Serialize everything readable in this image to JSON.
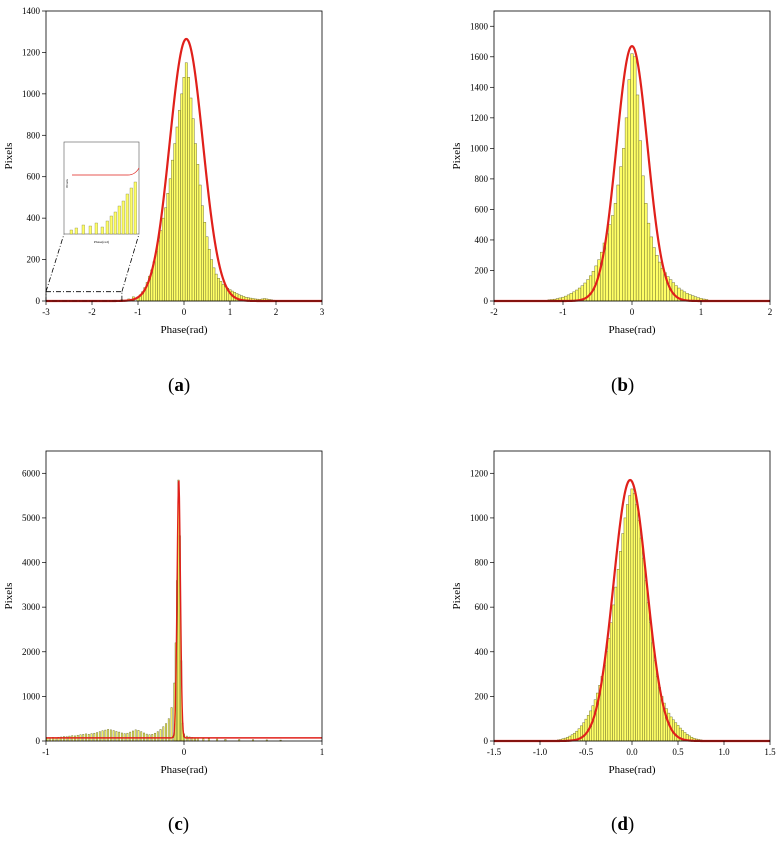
{
  "captions": [
    "a",
    "b",
    "c",
    "d"
  ],
  "chart_data": [
    {
      "id": "a",
      "type": "bar",
      "xlabel": "Phase(rad)",
      "ylabel": "Pixels",
      "xlim": [
        -3,
        3
      ],
      "ylim": [
        0,
        1400
      ],
      "xticks": [
        -3,
        -2,
        -1,
        0,
        1,
        2,
        3
      ],
      "yticks": [
        0,
        200,
        400,
        600,
        800,
        1000,
        1200,
        1400
      ],
      "bin_width": 0.05,
      "bins": [
        [
          -2.5,
          3
        ],
        [
          -1.5,
          4
        ],
        [
          -1.35,
          6
        ],
        [
          -1.2,
          10
        ],
        [
          -1.1,
          20
        ],
        [
          -1.0,
          20
        ],
        [
          -0.95,
          30
        ],
        [
          -0.9,
          45
        ],
        [
          -0.85,
          65
        ],
        [
          -0.8,
          90
        ],
        [
          -0.75,
          120
        ],
        [
          -0.7,
          150
        ],
        [
          -0.65,
          190
        ],
        [
          -0.6,
          240
        ],
        [
          -0.55,
          290
        ],
        [
          -0.5,
          340
        ],
        [
          -0.45,
          400
        ],
        [
          -0.4,
          450
        ],
        [
          -0.35,
          520
        ],
        [
          -0.3,
          590
        ],
        [
          -0.25,
          680
        ],
        [
          -0.2,
          760
        ],
        [
          -0.15,
          840
        ],
        [
          -0.1,
          920
        ],
        [
          -0.05,
          1000
        ],
        [
          0.0,
          1080
        ],
        [
          0.05,
          1150
        ],
        [
          0.1,
          1080
        ],
        [
          0.15,
          980
        ],
        [
          0.2,
          880
        ],
        [
          0.25,
          760
        ],
        [
          0.3,
          660
        ],
        [
          0.35,
          560
        ],
        [
          0.4,
          460
        ],
        [
          0.45,
          380
        ],
        [
          0.5,
          310
        ],
        [
          0.55,
          250
        ],
        [
          0.6,
          200
        ],
        [
          0.65,
          160
        ],
        [
          0.7,
          130
        ],
        [
          0.75,
          110
        ],
        [
          0.8,
          95
        ],
        [
          0.85,
          80
        ],
        [
          0.9,
          70
        ],
        [
          0.95,
          62
        ],
        [
          1.0,
          55
        ],
        [
          1.05,
          48
        ],
        [
          1.1,
          42
        ],
        [
          1.15,
          36
        ],
        [
          1.2,
          30
        ],
        [
          1.25,
          26
        ],
        [
          1.3,
          22
        ],
        [
          1.35,
          18
        ],
        [
          1.4,
          16
        ],
        [
          1.45,
          14
        ],
        [
          1.5,
          12
        ],
        [
          1.55,
          10
        ],
        [
          1.6,
          9
        ],
        [
          1.65,
          8
        ],
        [
          1.7,
          10
        ],
        [
          1.75,
          12
        ],
        [
          1.8,
          10
        ],
        [
          1.85,
          8
        ],
        [
          1.9,
          6
        ],
        [
          1.95,
          4
        ],
        [
          2.0,
          3
        ]
      ],
      "fit": {
        "amplitude": 1265,
        "mean": 0.05,
        "sigma": 0.36
      },
      "inset": {
        "xlabel": "Phase(rad)",
        "ylabel": "Pixels",
        "zoom_region": {
          "x": [
            -3,
            -1.35
          ],
          "y": [
            0,
            45
          ]
        }
      }
    },
    {
      "id": "b",
      "type": "bar",
      "xlabel": "Phase(rad)",
      "ylabel": "Pixels",
      "xlim": [
        -2,
        2
      ],
      "ylim": [
        0,
        1900
      ],
      "xticks": [
        -2,
        -1,
        0,
        1,
        2
      ],
      "yticks": [
        0,
        200,
        400,
        600,
        800,
        1000,
        1200,
        1400,
        1600,
        1800
      ],
      "bin_width": 0.04,
      "bins": [
        [
          -1.2,
          8
        ],
        [
          -1.16,
          10
        ],
        [
          -1.12,
          12
        ],
        [
          -1.08,
          16
        ],
        [
          -1.04,
          20
        ],
        [
          -1.0,
          25
        ],
        [
          -0.96,
          32
        ],
        [
          -0.92,
          40
        ],
        [
          -0.88,
          50
        ],
        [
          -0.84,
          60
        ],
        [
          -0.8,
          72
        ],
        [
          -0.76,
          85
        ],
        [
          -0.72,
          100
        ],
        [
          -0.68,
          118
        ],
        [
          -0.64,
          140
        ],
        [
          -0.6,
          165
        ],
        [
          -0.56,
          195
        ],
        [
          -0.52,
          230
        ],
        [
          -0.48,
          270
        ],
        [
          -0.44,
          320
        ],
        [
          -0.4,
          380
        ],
        [
          -0.36,
          440
        ],
        [
          -0.32,
          500
        ],
        [
          -0.28,
          560
        ],
        [
          -0.24,
          640
        ],
        [
          -0.2,
          760
        ],
        [
          -0.16,
          880
        ],
        [
          -0.12,
          1000
        ],
        [
          -0.08,
          1200
        ],
        [
          -0.04,
          1450
        ],
        [
          0.0,
          1620
        ],
        [
          0.04,
          1600
        ],
        [
          0.08,
          1350
        ],
        [
          0.12,
          1050
        ],
        [
          0.16,
          820
        ],
        [
          0.2,
          640
        ],
        [
          0.24,
          510
        ],
        [
          0.28,
          420
        ],
        [
          0.32,
          350
        ],
        [
          0.36,
          300
        ],
        [
          0.4,
          255
        ],
        [
          0.44,
          215
        ],
        [
          0.48,
          185
        ],
        [
          0.52,
          160
        ],
        [
          0.56,
          140
        ],
        [
          0.6,
          120
        ],
        [
          0.64,
          100
        ],
        [
          0.68,
          85
        ],
        [
          0.72,
          72
        ],
        [
          0.76,
          60
        ],
        [
          0.8,
          50
        ],
        [
          0.84,
          42
        ],
        [
          0.88,
          35
        ],
        [
          0.92,
          28
        ],
        [
          0.96,
          22
        ],
        [
          1.0,
          17
        ],
        [
          1.04,
          13
        ],
        [
          1.08,
          10
        ]
      ],
      "fit": {
        "amplitude": 1670,
        "mean": 0.0,
        "sigma": 0.225
      }
    },
    {
      "id": "c",
      "type": "bar",
      "xlabel": "Phase(rad)",
      "ylabel": "Pixels",
      "xlim": [
        -1,
        1
      ],
      "ylim": [
        0,
        6500
      ],
      "xticks": [
        -1,
        0,
        1
      ],
      "yticks": [
        0,
        1000,
        2000,
        3000,
        4000,
        5000,
        6000
      ],
      "bin_width": 0.01,
      "bins": [
        [
          -0.99,
          60
        ],
        [
          -0.97,
          70
        ],
        [
          -0.95,
          80
        ],
        [
          -0.93,
          75
        ],
        [
          -0.91,
          85
        ],
        [
          -0.89,
          90
        ],
        [
          -0.87,
          100
        ],
        [
          -0.85,
          95
        ],
        [
          -0.83,
          110
        ],
        [
          -0.81,
          120
        ],
        [
          -0.79,
          115
        ],
        [
          -0.77,
          130
        ],
        [
          -0.75,
          140
        ],
        [
          -0.73,
          150
        ],
        [
          -0.71,
          160
        ],
        [
          -0.69,
          150
        ],
        [
          -0.67,
          165
        ],
        [
          -0.65,
          175
        ],
        [
          -0.63,
          190
        ],
        [
          -0.61,
          210
        ],
        [
          -0.59,
          230
        ],
        [
          -0.57,
          245
        ],
        [
          -0.55,
          260
        ],
        [
          -0.53,
          250
        ],
        [
          -0.51,
          235
        ],
        [
          -0.49,
          215
        ],
        [
          -0.47,
          200
        ],
        [
          -0.45,
          180
        ],
        [
          -0.43,
          165
        ],
        [
          -0.41,
          175
        ],
        [
          -0.39,
          200
        ],
        [
          -0.37,
          225
        ],
        [
          -0.35,
          250
        ],
        [
          -0.33,
          240
        ],
        [
          -0.31,
          210
        ],
        [
          -0.29,
          180
        ],
        [
          -0.27,
          155
        ],
        [
          -0.25,
          140
        ],
        [
          -0.23,
          150
        ],
        [
          -0.21,
          175
        ],
        [
          -0.19,
          210
        ],
        [
          -0.17,
          260
        ],
        [
          -0.15,
          320
        ],
        [
          -0.13,
          390
        ],
        [
          -0.11,
          500
        ],
        [
          -0.09,
          750
        ],
        [
          -0.07,
          1300
        ],
        [
          -0.06,
          2200
        ],
        [
          -0.05,
          3600
        ],
        [
          -0.04,
          5850
        ],
        [
          -0.03,
          4600
        ],
        [
          -0.02,
          1800
        ],
        [
          -0.01,
          400
        ],
        [
          0.0,
          160
        ],
        [
          0.02,
          110
        ],
        [
          0.04,
          90
        ],
        [
          0.06,
          80
        ],
        [
          0.08,
          70
        ],
        [
          0.1,
          65
        ],
        [
          0.14,
          55
        ],
        [
          0.18,
          50
        ],
        [
          0.24,
          45
        ],
        [
          0.3,
          40
        ],
        [
          0.4,
          35
        ],
        [
          0.5,
          30
        ],
        [
          0.6,
          25
        ],
        [
          0.7,
          20
        ]
      ],
      "fit": {
        "amplitude": 5800,
        "mean": -0.038,
        "sigma": 0.012,
        "baseline": 70
      }
    },
    {
      "id": "d",
      "type": "bar",
      "xlabel": "Phase(rad)",
      "ylabel": "Pixels",
      "xlim": [
        -1.5,
        1.5
      ],
      "ylim": [
        0,
        1300
      ],
      "xticks": [
        -1.5,
        -1.0,
        -0.5,
        0.0,
        0.5,
        1.0,
        1.5
      ],
      "xtick_labels": [
        "-1.5",
        "-1.0",
        "-0.5",
        "0.0",
        "0.5",
        "1.0",
        "1.5"
      ],
      "yticks": [
        0,
        200,
        400,
        600,
        800,
        1000,
        1200
      ],
      "bin_width": 0.025,
      "bins": [
        [
          -0.8,
          5
        ],
        [
          -0.775,
          7
        ],
        [
          -0.75,
          10
        ],
        [
          -0.725,
          13
        ],
        [
          -0.7,
          17
        ],
        [
          -0.675,
          22
        ],
        [
          -0.65,
          28
        ],
        [
          -0.625,
          35
        ],
        [
          -0.6,
          44
        ],
        [
          -0.575,
          55
        ],
        [
          -0.55,
          68
        ],
        [
          -0.525,
          82
        ],
        [
          -0.5,
          98
        ],
        [
          -0.475,
          115
        ],
        [
          -0.45,
          135
        ],
        [
          -0.425,
          158
        ],
        [
          -0.4,
          185
        ],
        [
          -0.375,
          215
        ],
        [
          -0.35,
          250
        ],
        [
          -0.325,
          290
        ],
        [
          -0.3,
          340
        ],
        [
          -0.275,
          400
        ],
        [
          -0.25,
          460
        ],
        [
          -0.225,
          530
        ],
        [
          -0.2,
          610
        ],
        [
          -0.175,
          690
        ],
        [
          -0.15,
          770
        ],
        [
          -0.125,
          850
        ],
        [
          -0.1,
          930
        ],
        [
          -0.075,
          1000
        ],
        [
          -0.05,
          1060
        ],
        [
          -0.025,
          1100
        ],
        [
          0.0,
          1130
        ],
        [
          0.025,
          1110
        ],
        [
          0.05,
          1060
        ],
        [
          0.075,
          990
        ],
        [
          0.1,
          910
        ],
        [
          0.125,
          820
        ],
        [
          0.15,
          720
        ],
        [
          0.175,
          620
        ],
        [
          0.2,
          530
        ],
        [
          0.225,
          440
        ],
        [
          0.25,
          360
        ],
        [
          0.275,
          290
        ],
        [
          0.3,
          240
        ],
        [
          0.325,
          200
        ],
        [
          0.35,
          170
        ],
        [
          0.375,
          145
        ],
        [
          0.4,
          125
        ],
        [
          0.425,
          108
        ],
        [
          0.45,
          95
        ],
        [
          0.475,
          82
        ],
        [
          0.5,
          70
        ],
        [
          0.525,
          58
        ],
        [
          0.55,
          47
        ],
        [
          0.575,
          38
        ],
        [
          0.6,
          30
        ],
        [
          0.625,
          23
        ],
        [
          0.65,
          17
        ],
        [
          0.675,
          12
        ],
        [
          0.7,
          9
        ],
        [
          0.725,
          7
        ],
        [
          0.75,
          5
        ],
        [
          0.8,
          3
        ],
        [
          0.85,
          2
        ]
      ],
      "fit": {
        "amplitude": 1170,
        "mean": -0.02,
        "sigma": 0.18
      }
    }
  ]
}
